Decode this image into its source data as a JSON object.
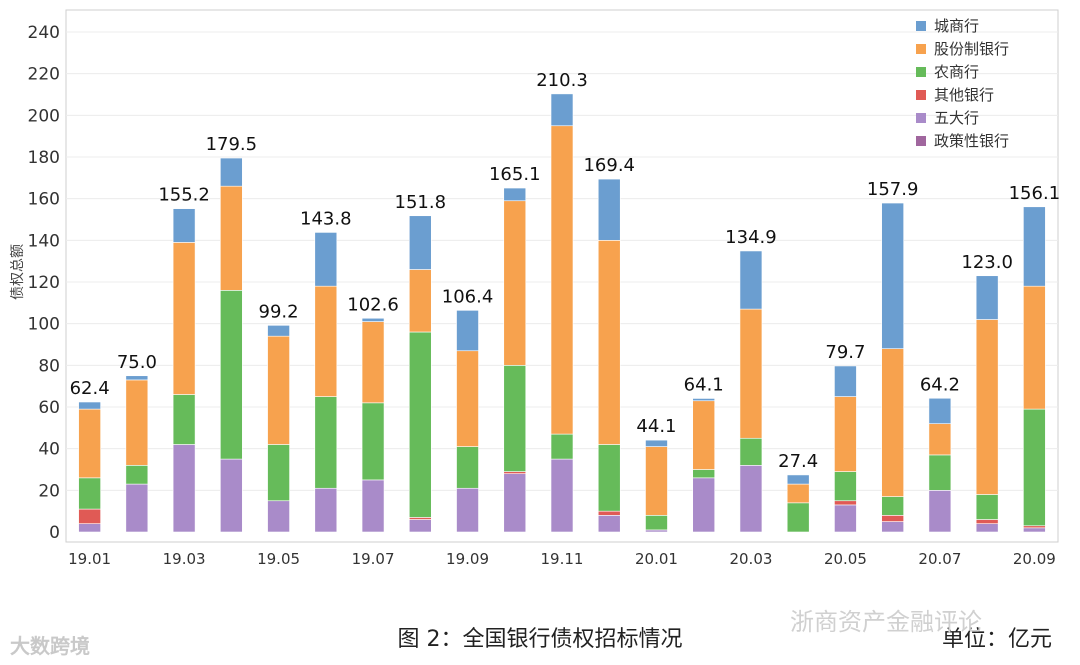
{
  "chart_data": {
    "type": "bar",
    "stacked": true,
    "title": "图 2：全国银行债权招标情况",
    "unit_label": "单位：亿元",
    "xlabel": "",
    "ylabel": "债权总额",
    "ylim": [
      0,
      240
    ],
    "yticks": [
      0,
      20,
      40,
      60,
      80,
      100,
      120,
      140,
      160,
      180,
      200,
      220,
      240
    ],
    "grid": true,
    "legend_position": "top-right",
    "categories": [
      "19.01",
      "19.02",
      "19.03",
      "19.04",
      "19.05",
      "19.06",
      "19.07",
      "19.08",
      "19.09",
      "19.10",
      "19.11",
      "19.12",
      "20.01",
      "20.02",
      "20.03",
      "20.04",
      "20.05",
      "20.06",
      "20.07",
      "20.08",
      "20.09"
    ],
    "xtick_labels": [
      "19.01",
      "",
      "19.03",
      "",
      "19.05",
      "",
      "19.07",
      "",
      "19.09",
      "",
      "19.11",
      "",
      "20.01",
      "",
      "20.03",
      "",
      "20.05",
      "",
      "20.07",
      "",
      "20.09"
    ],
    "totals": [
      62.4,
      75.0,
      155.2,
      179.5,
      99.2,
      143.8,
      102.6,
      151.8,
      106.4,
      165.1,
      210.3,
      169.4,
      44.1,
      64.1,
      134.9,
      27.4,
      79.7,
      157.9,
      64.2,
      123.0,
      156.1
    ],
    "total_labels": [
      "62.4",
      "75.0",
      "155.2",
      "179.5",
      "99.2",
      "143.8",
      "102.6",
      "151.8",
      "106.4",
      "165.1",
      "210.3",
      "169.4",
      "44.1",
      "64.1",
      "134.9",
      "27.4",
      "79.7",
      "157.9",
      "64.2",
      "123.0",
      "156.1"
    ],
    "series": [
      {
        "name": "政策性银行",
        "color": "#a0669e",
        "values": [
          0,
          0,
          0,
          0,
          0,
          0,
          0,
          0,
          0,
          0,
          0,
          0,
          0,
          0,
          0,
          0,
          0,
          0,
          0,
          0,
          0
        ]
      },
      {
        "name": "五大行",
        "color": "#a98bc9",
        "values": [
          4,
          23,
          42,
          35,
          15,
          21,
          25,
          6,
          21,
          28,
          35,
          8,
          1,
          26,
          32,
          0,
          13,
          5,
          20,
          4,
          2
        ]
      },
      {
        "name": "其他银行",
        "color": "#e05a55",
        "values": [
          7,
          0,
          0,
          0,
          0,
          0,
          0,
          1,
          0,
          1,
          0,
          2,
          0,
          0,
          0,
          0,
          2,
          3,
          0,
          2,
          1
        ]
      },
      {
        "name": "农商行",
        "color": "#66bb5a",
        "values": [
          15,
          9,
          24,
          81,
          27,
          44,
          37,
          89,
          20,
          51,
          12,
          32,
          7,
          4,
          13,
          14,
          14,
          9,
          17,
          12,
          56
        ]
      },
      {
        "name": "股份制银行",
        "color": "#f7a24e",
        "values": [
          33,
          41,
          73,
          50,
          52,
          53,
          39,
          30,
          46,
          79,
          148,
          98,
          33,
          33,
          62,
          9,
          36,
          71,
          15,
          84,
          59
        ]
      },
      {
        "name": "城商行",
        "color": "#6b9ed0",
        "values": [
          3.4,
          2.0,
          16.2,
          13.5,
          5.2,
          25.8,
          1.6,
          25.8,
          19.4,
          6.1,
          15.3,
          29.4,
          3.1,
          1.1,
          27.9,
          4.4,
          14.7,
          69.9,
          12.2,
          21.0,
          38.1
        ]
      }
    ],
    "legend": [
      "城商行",
      "股份制银行",
      "农商行",
      "其他银行",
      "五大行",
      "政策性银行"
    ]
  },
  "watermarks": {
    "left": "大数跨境",
    "right": "浙商资产金融评论"
  },
  "legend_icon": "square-swatch-icon"
}
